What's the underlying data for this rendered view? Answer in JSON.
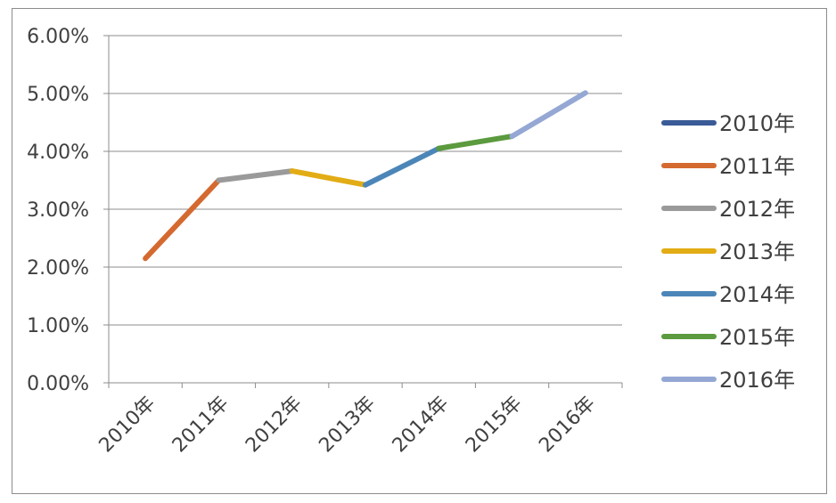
{
  "chart_data": {
    "type": "line",
    "categories": [
      "2010年",
      "2011年",
      "2012年",
      "2013年",
      "2014年",
      "2015年",
      "2016年"
    ],
    "values": [
      2.15,
      3.5,
      3.66,
      3.42,
      4.05,
      4.26,
      5.01
    ],
    "segment_colors": [
      "#4472c4",
      "#d46a30",
      "#9a9a9a",
      "#e2ac15",
      "#4c86b8",
      "#5b9a3e",
      "#95a8d4"
    ],
    "legend": [
      {
        "label": "2010年",
        "color": "#3a5b97"
      },
      {
        "label": "2011年",
        "color": "#d46a30"
      },
      {
        "label": "2012年",
        "color": "#9a9a9a"
      },
      {
        "label": "2013年",
        "color": "#e2ac15"
      },
      {
        "label": "2014年",
        "color": "#4c86b8"
      },
      {
        "label": "2015年",
        "color": "#5b9a3e"
      },
      {
        "label": "2016年",
        "color": "#95a8d4"
      }
    ],
    "legend_position": "right",
    "y_ticks": [
      "0.00%",
      "1.00%",
      "2.00%",
      "3.00%",
      "4.00%",
      "5.00%",
      "6.00%"
    ],
    "ylim": [
      0,
      6
    ],
    "grid": true,
    "title": "",
    "xlabel": "",
    "ylabel": ""
  }
}
